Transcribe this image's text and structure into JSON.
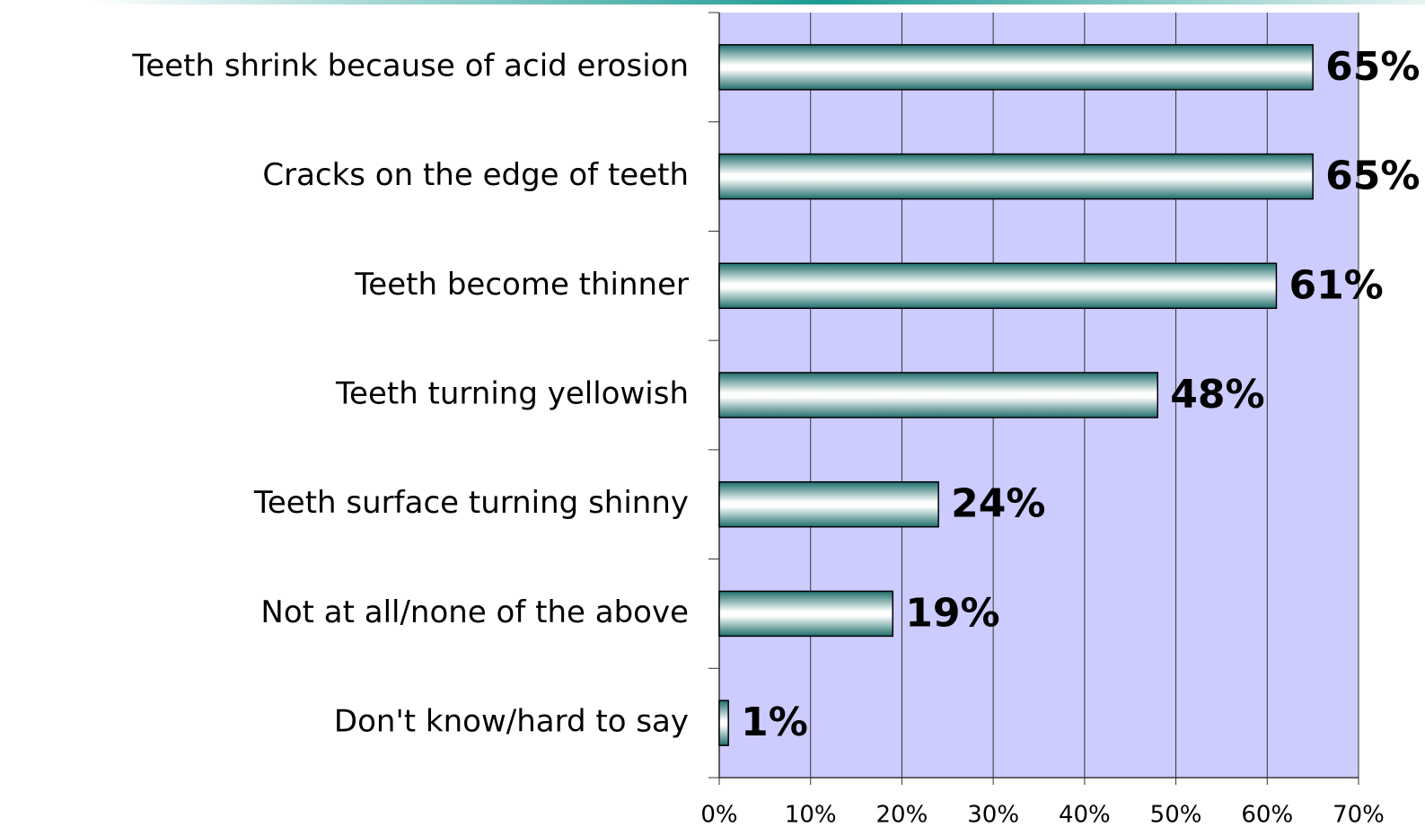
{
  "chart_data": {
    "type": "hbar",
    "categories": [
      "Teeth shrink because of acid erosion",
      "Cracks on the edge of teeth",
      "Teeth become thinner",
      "Teeth turning yellowish",
      "Teeth surface turning shinny",
      "Not at all/none of the above",
      "Don't know/hard to say"
    ],
    "values": [
      65,
      65,
      61,
      48,
      24,
      19,
      1
    ],
    "value_labels": [
      "65%",
      "65%",
      "61%",
      "48%",
      "24%",
      "19%",
      "1%"
    ],
    "color": "#1f7a78",
    "xlim": [
      0,
      70
    ],
    "xticks": [
      {
        "value": 0,
        "label": "0%"
      },
      {
        "value": 10,
        "label": "10%"
      },
      {
        "value": 20,
        "label": "20%"
      },
      {
        "value": 30,
        "label": "30%"
      },
      {
        "value": 40,
        "label": "40%"
      },
      {
        "value": 50,
        "label": "50%"
      },
      {
        "value": 60,
        "label": "60%"
      },
      {
        "value": 70,
        "label": "70%"
      }
    ],
    "grid": true
  }
}
